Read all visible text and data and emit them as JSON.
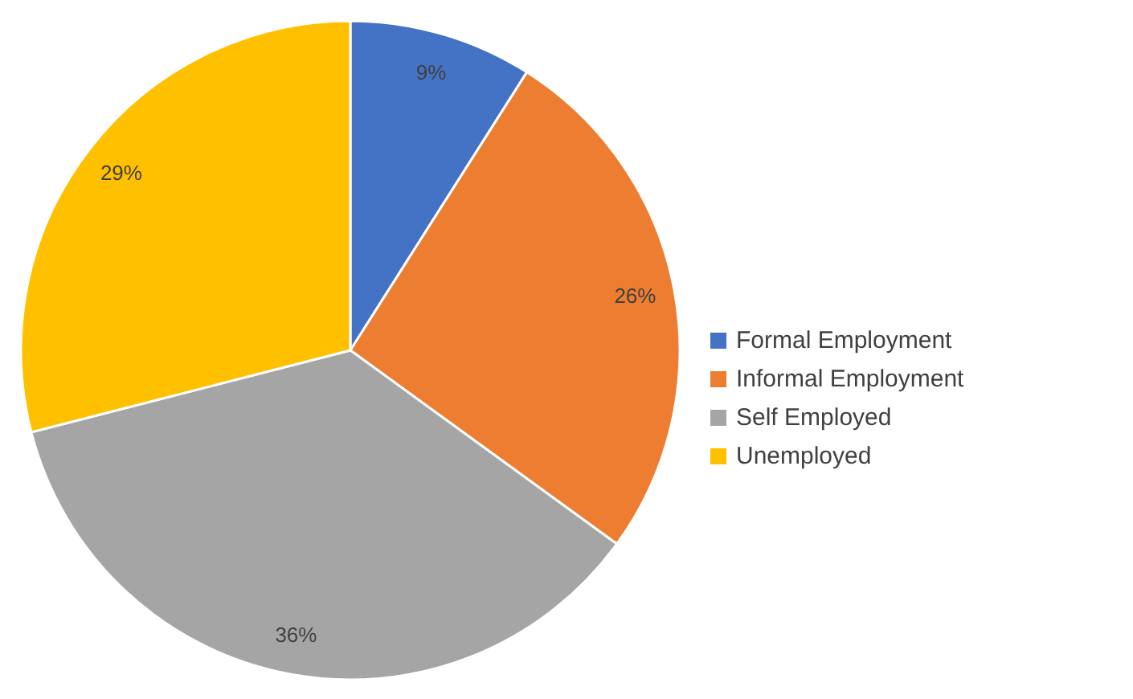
{
  "chart_data": {
    "type": "pie",
    "categories": [
      "Formal Employment",
      "Informal Employment",
      "Self Employed",
      "Unemployed"
    ],
    "values": [
      9,
      26,
      36,
      29
    ],
    "colors": [
      "#4472c4",
      "#ed7d31",
      "#a5a5a5",
      "#ffc000"
    ],
    "value_labels": [
      "9%",
      "26%",
      "36%",
      "29%"
    ],
    "legend": "right"
  }
}
